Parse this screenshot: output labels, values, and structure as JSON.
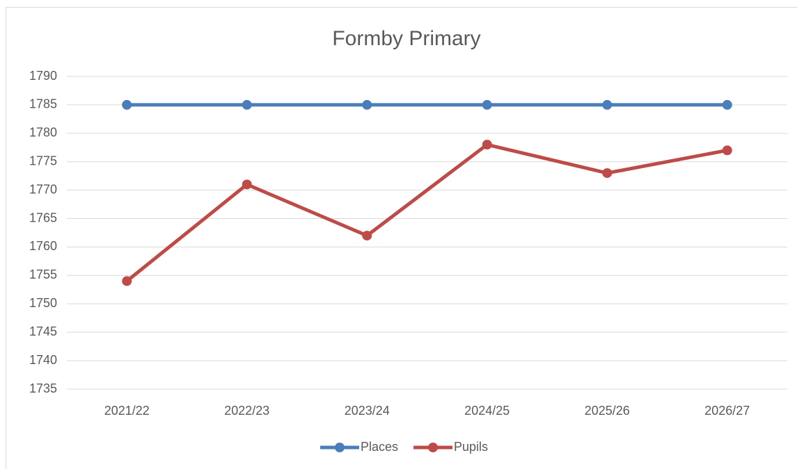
{
  "chart_data": {
    "type": "line",
    "title": "Formby Primary",
    "categories": [
      "2021/22",
      "2022/23",
      "2023/24",
      "2024/25",
      "2025/26",
      "2026/27"
    ],
    "series": [
      {
        "name": "Places",
        "color": "#4a7ebb",
        "values": [
          1785,
          1785,
          1785,
          1785,
          1785,
          1785
        ]
      },
      {
        "name": "Pupils",
        "color": "#be4b48",
        "values": [
          1754,
          1771,
          1762,
          1778,
          1773,
          1777
        ]
      }
    ],
    "ylim": [
      1735,
      1790
    ],
    "yticks": [
      1735,
      1740,
      1745,
      1750,
      1755,
      1760,
      1765,
      1770,
      1775,
      1780,
      1785,
      1790
    ],
    "grid": true,
    "legend": "bottom"
  }
}
